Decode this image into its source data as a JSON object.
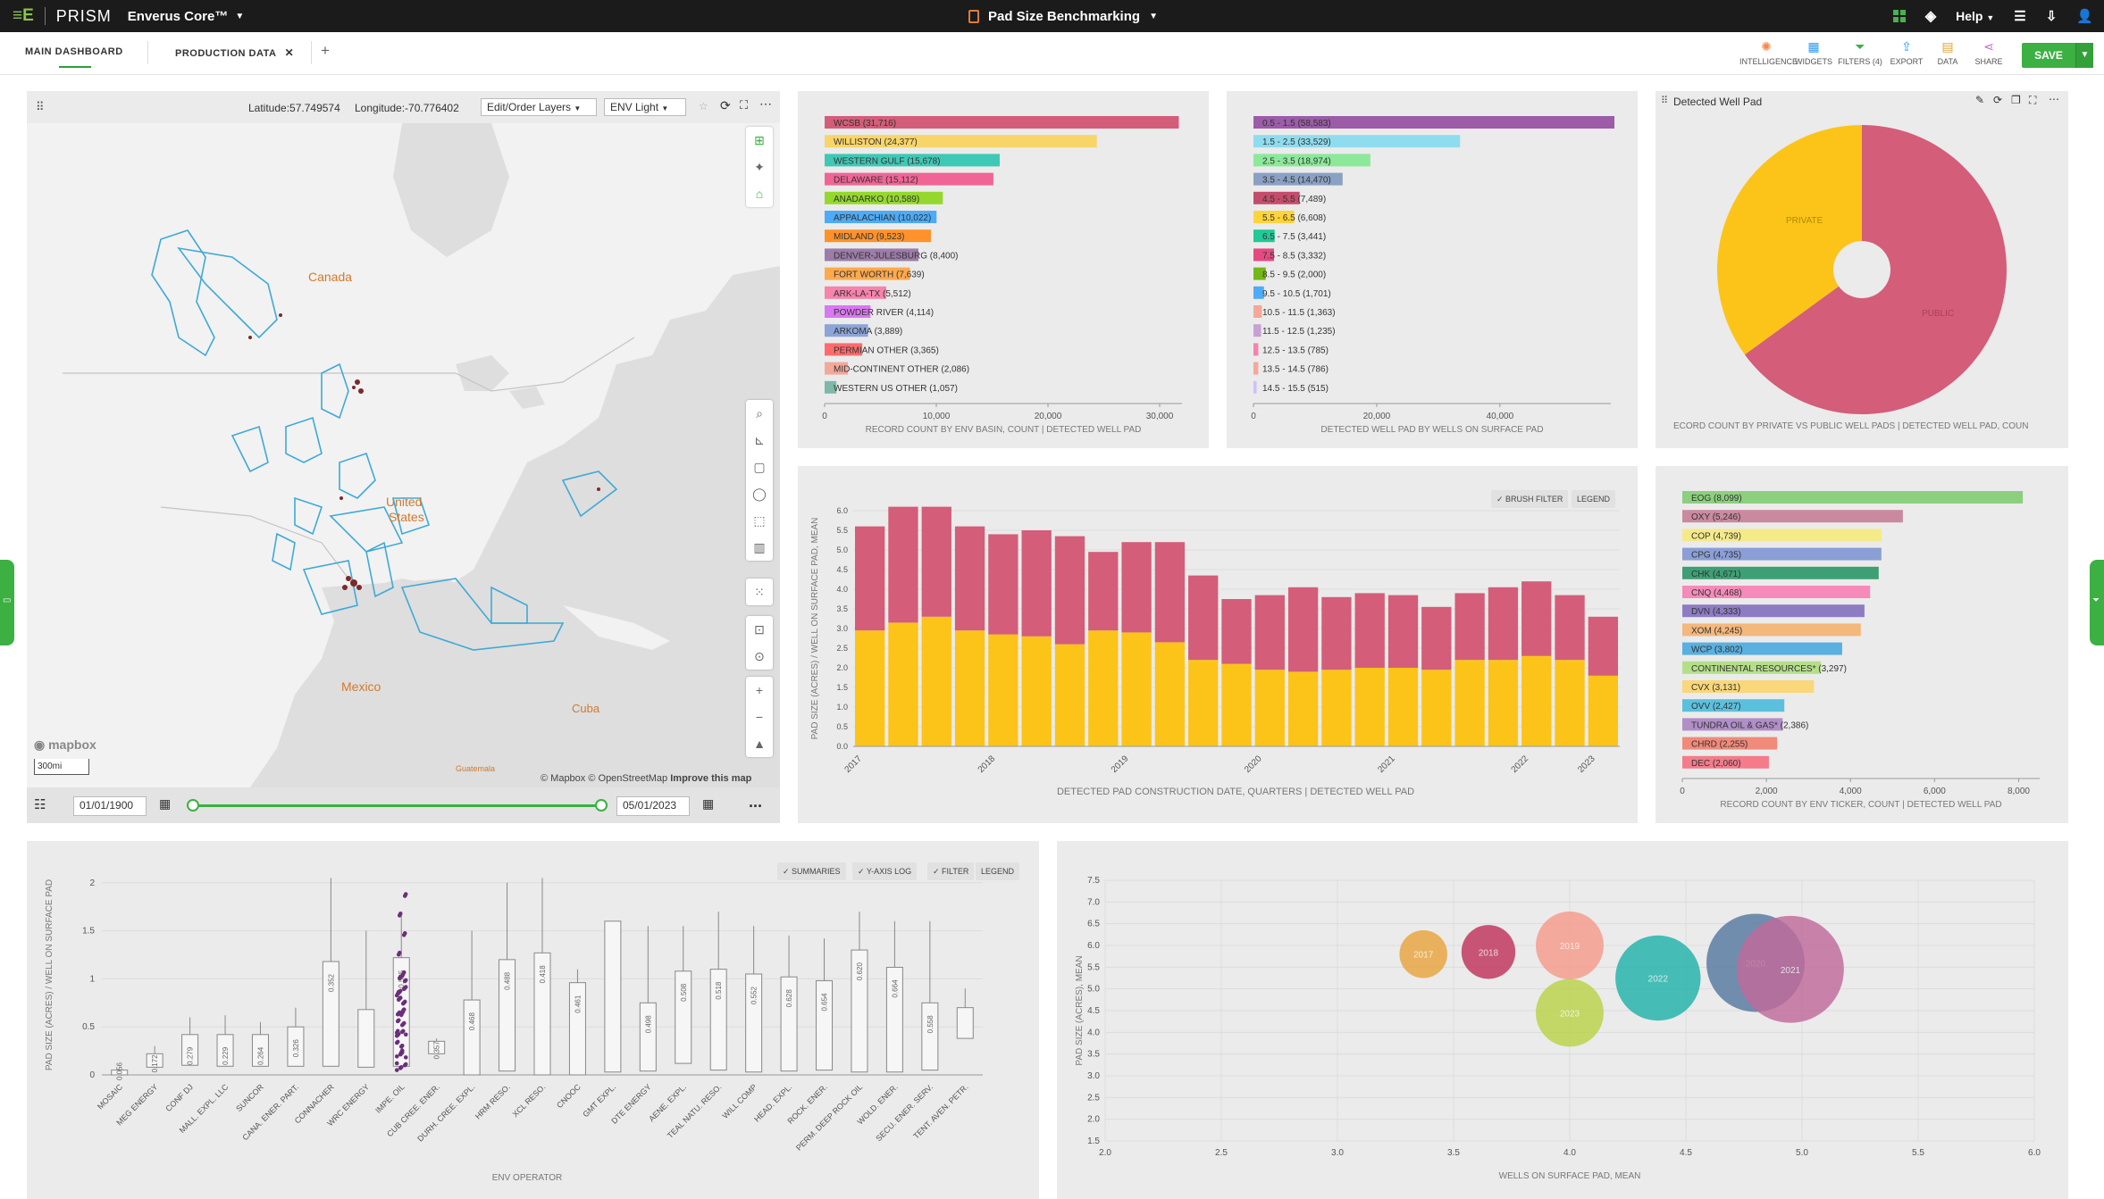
{
  "app": {
    "logo_mark": "≡E",
    "prism_name": "PRISM",
    "product": "Enverus Core™",
    "document_title": "Pad Size Benchmarking",
    "help_label": "Help"
  },
  "tabs": [
    {
      "label": "MAIN DASHBOARD"
    },
    {
      "label": "PRODUCTION DATA"
    }
  ],
  "toolbar": {
    "intelligence": "INTELLIGENCE",
    "widgets": "WIDGETS",
    "filters": "FILTERS (4)",
    "export": "EXPORT",
    "data": "DATA",
    "share": "SHARE",
    "save": "SAVE"
  },
  "map": {
    "latitude": "Latitude:57.749574",
    "longitude": "Longitude:-70.776402",
    "layers_button": "Edit/Order Layers",
    "style_button": "ENV Light",
    "labels": {
      "canada": "Canada",
      "united_states_1": "United",
      "united_states_2": "States",
      "mexico": "Mexico",
      "cuba": "Cuba",
      "guatemala": "Guatemala"
    },
    "attribution": "© Mapbox © OpenStreetMap",
    "improve": "Improve this map",
    "mapbox": "mapbox",
    "scale": "300mi",
    "date_start": "01/01/1900",
    "date_end": "05/01/2023",
    "more": "..."
  },
  "basin_chart": {
    "xlabel": "RECORD COUNT BY ENV BASIN, COUNT | DETECTED WELL PAD",
    "ticks": [
      "0",
      "10,000",
      "20,000",
      "30,000"
    ]
  },
  "wells_chart": {
    "xlabel": "DETECTED WELL PAD BY WELLS ON SURFACE PAD",
    "ticks": [
      "0",
      "20,000",
      "40,000"
    ]
  },
  "pie_panel": {
    "title": "Detected Well Pad",
    "caption": "ECORD COUNT BY PRIVATE VS PUBLIC WELL PADS | DETECTED WELL PAD, COUN",
    "private_label": "PRIVATE",
    "public_label": "PUBLIC"
  },
  "stacked_panel": {
    "brush_filter": "BRUSH FILTER",
    "legend": "LEGEND",
    "ylabel": "PAD SIZE (ACRES) / WELL ON SURFACE PAD, MEAN",
    "xlabel": "DETECTED PAD CONSTRUCTION DATE, QUARTERS | DETECTED WELL PAD",
    "yticks": [
      "0.0",
      "0.5",
      "1.0",
      "1.5",
      "2.0",
      "2.5",
      "3.0",
      "3.5",
      "4.0",
      "4.5",
      "5.0",
      "5.5",
      "6.0"
    ],
    "xticks": [
      "2017",
      "2018",
      "2019",
      "2020",
      "2021",
      "2022",
      "2023"
    ]
  },
  "ticker_chart": {
    "xlabel": "RECORD COUNT BY ENV TICKER, COUNT | DETECTED WELL PAD",
    "ticks": [
      "0",
      "2,000",
      "4,000",
      "6,000",
      "8,000"
    ]
  },
  "box_panel": {
    "summaries": "SUMMARIES",
    "ylog": "Y-AXIS LOG",
    "filter": "FILTER",
    "legend": "LEGEND",
    "ylabel": "PAD SIZE (ACRES) / WELL ON SURFACE PAD",
    "xlabel": "ENV OPERATOR",
    "yticks": [
      "0",
      "0.5",
      "1",
      "1.5",
      "2"
    ]
  },
  "bubble_panel": {
    "ylabel": "PAD SIZE (ACRES), MEAN",
    "xlabel": "WELLS ON SURFACE PAD, MEAN",
    "yticks": [
      "1.5",
      "2.0",
      "2.5",
      "3.0",
      "3.5",
      "4.0",
      "4.5",
      "5.0",
      "5.5",
      "6.0",
      "6.5",
      "7.0",
      "7.5"
    ],
    "xticks": [
      "2.0",
      "2.5",
      "3.0",
      "3.5",
      "4.0",
      "4.5",
      "5.0",
      "5.5",
      "6.0"
    ]
  },
  "colors": {
    "accent_green": "#3cb043",
    "public": "#d45d79",
    "private": "#fcc419",
    "topbar": "#1b1b1b"
  },
  "chart_data": [
    {
      "type": "bar",
      "orientation": "horizontal",
      "title": "",
      "xlabel": "RECORD COUNT BY ENV BASIN, COUNT | DETECTED WELL PAD",
      "xlim": [
        0,
        32000
      ],
      "categories": [
        "WCSB",
        "WILLISTON",
        "WESTERN GULF",
        "DELAWARE",
        "ANADARKO",
        "APPALACHIAN",
        "MIDLAND",
        "DENVER-JULESBURG",
        "FORT WORTH",
        "ARK-LA-TX",
        "POWDER RIVER",
        "ARKOMA",
        "PERMIAN OTHER",
        "MID-CONTINENT OTHER",
        "WESTERN US OTHER"
      ],
      "labels": [
        "WCSB (31,716)",
        "WILLISTON (24,377)",
        "WESTERN GULF (15,678)",
        "DELAWARE (15,112)",
        "ANADARKO (10,589)",
        "APPALACHIAN (10,022)",
        "MIDLAND (9,523)",
        "DENVER-JULESBURG (8,400)",
        "FORT WORTH (7,639)",
        "ARK-LA-TX (5,512)",
        "POWDER RIVER (4,114)",
        "ARKOMA (3,889)",
        "PERMIAN OTHER (3,365)",
        "MID-CONTINENT OTHER (2,086)",
        "WESTERN US OTHER (1,057)"
      ],
      "values": [
        31716,
        24377,
        15678,
        15112,
        10589,
        10022,
        9523,
        8400,
        7639,
        5512,
        4114,
        3889,
        3365,
        2086,
        1057
      ],
      "colors": [
        "#d45d79",
        "#f8d568",
        "#3ec9b6",
        "#f06595",
        "#94d82d",
        "#4dabf7",
        "#ff922b",
        "#9c7ca8",
        "#ffa94d",
        "#f783ac",
        "#da77f2",
        "#8da4d8",
        "#ff6b6b",
        "#f4a89a",
        "#7fb8a8"
      ]
    },
    {
      "type": "bar",
      "orientation": "horizontal",
      "xlabel": "DETECTED WELL PAD BY WELLS ON SURFACE PAD",
      "xlim": [
        0,
        58000
      ],
      "categories": [
        "0.5 - 1.5",
        "1.5 - 2.5",
        "2.5 - 3.5",
        "3.5 - 4.5",
        "4.5 - 5.5",
        "5.5 - 6.5",
        "6.5 - 7.5",
        "7.5 - 8.5",
        "8.5 - 9.5",
        "9.5 - 10.5",
        "10.5 - 11.5",
        "11.5 - 12.5",
        "12.5 - 13.5",
        "13.5 - 14.5",
        "14.5 - 15.5"
      ],
      "labels": [
        "0.5 - 1.5 (58,583)",
        "1.5 - 2.5 (33,529)",
        "2.5 - 3.5 (18,974)",
        "3.5 - 4.5 (14,470)",
        "4.5 - 5.5 (7,489)",
        "5.5 - 6.5 (6,608)",
        "6.5 - 7.5 (3,441)",
        "7.5 - 8.5 (3,332)",
        "8.5 - 9.5 (2,000)",
        "9.5 - 10.5 (1,701)",
        "10.5 - 11.5 (1,363)",
        "11.5 - 12.5 (1,235)",
        "12.5 - 13.5 (785)",
        "13.5 - 14.5 (786)",
        "14.5 - 15.5 (515)"
      ],
      "values": [
        58583,
        33529,
        18974,
        14470,
        7489,
        6608,
        3441,
        3332,
        2000,
        1701,
        1363,
        1235,
        785,
        786,
        515
      ],
      "colors": [
        "#9c5ca8",
        "#8fdcef",
        "#8ce99a",
        "#8aa1c4",
        "#c44d6b",
        "#ffd43b",
        "#20c997",
        "#e64980",
        "#74b816",
        "#4dabf7",
        "#f4a89a",
        "#c7a0d4",
        "#f783ac",
        "#f4a89a",
        "#d0bfff"
      ]
    },
    {
      "type": "pie",
      "title": "Detected Well Pad",
      "categories": [
        "PRIVATE",
        "PUBLIC"
      ],
      "values": [
        35,
        65
      ],
      "colors": [
        "#fcc419",
        "#d45d79"
      ]
    },
    {
      "type": "bar",
      "stacked": true,
      "xlabel": "DETECTED PAD CONSTRUCTION DATE, QUARTERS | DETECTED WELL PAD",
      "ylabel": "PAD SIZE (ACRES) / WELL ON SURFACE PAD, MEAN",
      "ylim": [
        0,
        6
      ],
      "x_ticks": [
        "2017",
        "2018",
        "2019",
        "2020",
        "2021",
        "2022",
        "2023"
      ],
      "series": [
        {
          "values": [
            2.95,
            3.15,
            3.3,
            2.95,
            2.85,
            2.8,
            2.6,
            2.95,
            2.9,
            2.65,
            2.2,
            2.1,
            1.95,
            1.9,
            1.95,
            2.0,
            2.0,
            1.95,
            2.2,
            2.2,
            2.3,
            2.2,
            1.8
          ],
          "color": "#fcc419"
        },
        {
          "values": [
            2.65,
            2.95,
            2.8,
            2.65,
            2.55,
            2.7,
            2.75,
            2.0,
            2.3,
            2.55,
            2.15,
            1.65,
            1.9,
            2.15,
            1.85,
            1.9,
            1.85,
            1.6,
            1.7,
            1.85,
            1.9,
            1.65,
            1.5
          ],
          "color": "#d45d79"
        }
      ]
    },
    {
      "type": "bar",
      "orientation": "horizontal",
      "xlabel": "RECORD COUNT BY ENV TICKER, COUNT | DETECTED WELL PAD",
      "xlim": [
        0,
        8500
      ],
      "categories": [
        "EOG",
        "OXY",
        "COP",
        "CPG",
        "CHK",
        "CNQ",
        "DVN",
        "XOM",
        "WCP",
        "CONTINENTAL RESOURCES*",
        "CVX",
        "OVV",
        "TUNDRA OIL & GAS*",
        "CHRD",
        "DEC"
      ],
      "labels": [
        "EOG (8,099)",
        "OXY (5,246)",
        "COP (4,739)",
        "CPG (4,735)",
        "CHK (4,671)",
        "CNQ (4,468)",
        "DVN (4,333)",
        "XOM (4,245)",
        "WCP (3,802)",
        "CONTINENTAL RESOURCES* (3,297)",
        "CVX (3,131)",
        "OVV (2,427)",
        "TUNDRA OIL & GAS* (2,386)",
        "CHRD (2,255)",
        "DEC (2,060)"
      ],
      "values": [
        8099,
        5246,
        4739,
        4735,
        4671,
        4468,
        4333,
        4245,
        3802,
        3297,
        3131,
        2427,
        2386,
        2255,
        2060
      ],
      "colors": [
        "#8ccf7e",
        "#c98aa0",
        "#f5ea8a",
        "#8b9fd6",
        "#3f9f74",
        "#f58bb8",
        "#8e7cc3",
        "#f4b77c",
        "#5ab0e0",
        "#b5de8a",
        "#f9d77a",
        "#5bc0de",
        "#b08fc7",
        "#f08a7a",
        "#f47c8a"
      ]
    },
    {
      "type": "box",
      "xlabel": "ENV OPERATOR",
      "ylabel": "PAD SIZE (ACRES) / WELL ON SURFACE PAD",
      "ylim": [
        0,
        2.1
      ],
      "categories": [
        "MOSAIC",
        "MEG ENERGY",
        "CONF DJ",
        "MALL. EXPL. LLC",
        "SUNCOR",
        "CANA. ENER. PART.",
        "CONNACHER",
        "WRC ENERGY",
        "IMPE. OIL",
        "CUB CREE. ENER.",
        "DURH. CREE. EXPL.",
        "HRM RESO.",
        "XCL RESO.",
        "CNOOC",
        "GMT EXPL.",
        "DTE ENERGY",
        "AENE. EXPL.",
        "TEAL NATU. RESO.",
        "WILL COMP",
        "HEAD. EXPL.",
        "ROCK. ENER.",
        "PERM. DEEP ROCK OIL",
        "WOLD. ENER.",
        "SECU. ENER. SERV.",
        "TENT. AVEN. PETR."
      ],
      "medians": [
        "0.056",
        "0.172",
        "0.279",
        "0.229",
        "0.264",
        "0.326",
        "0.352",
        "",
        "0.505",
        "0.357",
        "0.468",
        "0.488",
        "0.418",
        "0.461",
        "",
        "0.498",
        "0.508",
        "0.518",
        "0.552",
        "0.628",
        "0.654",
        "0.620",
        "0.664",
        "0.558",
        ""
      ],
      "q1": [
        0.0,
        0.08,
        0.1,
        0.09,
        0.09,
        0.09,
        0.09,
        0.08,
        0.09,
        0.22,
        0.0,
        0.04,
        0.0,
        0.0,
        0.03,
        0.04,
        0.12,
        0.05,
        0.03,
        0.04,
        0.05,
        0.03,
        0.03,
        0.05,
        0.38
      ],
      "q3": [
        0.05,
        0.22,
        0.42,
        0.42,
        0.42,
        0.5,
        1.18,
        0.68,
        1.22,
        0.35,
        0.78,
        1.2,
        1.27,
        0.96,
        1.6,
        0.75,
        1.08,
        1.1,
        1.05,
        1.02,
        0.98,
        1.3,
        1.12,
        0.75,
        0.7
      ],
      "max": [
        0.05,
        0.3,
        0.6,
        0.62,
        0.55,
        0.7,
        2.05,
        1.5,
        1.7,
        0.38,
        1.5,
        2.0,
        2.05,
        1.1,
        1.6,
        1.55,
        1.55,
        1.7,
        1.55,
        1.45,
        1.42,
        1.7,
        1.6,
        1.6,
        0.9
      ]
    },
    {
      "type": "scatter",
      "bubble": true,
      "xlabel": "WELLS ON SURFACE PAD, MEAN",
      "ylabel": "PAD SIZE (ACRES), MEAN",
      "xlim": [
        2.0,
        6.0
      ],
      "ylim": [
        1.5,
        7.5
      ],
      "points": [
        {
          "label": "2017",
          "x": 3.37,
          "y": 5.8,
          "r": 0.55,
          "color": "#e8a33d"
        },
        {
          "label": "2018",
          "x": 3.65,
          "y": 5.85,
          "r": 0.62,
          "color": "#c0325a"
        },
        {
          "label": "2019",
          "x": 4.0,
          "y": 6.0,
          "r": 0.78,
          "color": "#f59a8b"
        },
        {
          "label": "2023",
          "x": 4.0,
          "y": 4.45,
          "r": 0.78,
          "color": "#b8d247"
        },
        {
          "label": "2022",
          "x": 4.38,
          "y": 5.25,
          "r": 0.98,
          "color": "#20b2aa"
        },
        {
          "label": "2020",
          "x": 4.8,
          "y": 5.6,
          "r": 1.13,
          "color": "#5578a0"
        },
        {
          "label": "2021",
          "x": 4.95,
          "y": 5.45,
          "r": 1.23,
          "color": "#c06a9a"
        }
      ]
    }
  ]
}
